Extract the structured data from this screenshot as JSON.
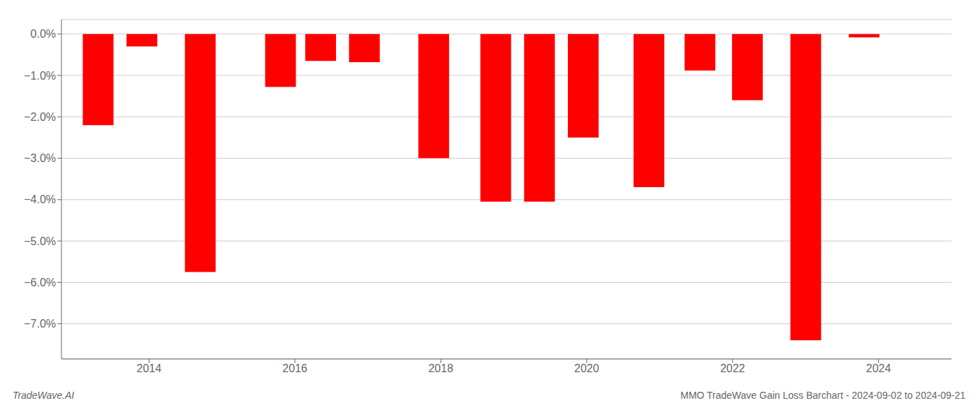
{
  "chart_data": {
    "type": "bar",
    "x": [
      2013.3,
      2013.9,
      2014.7,
      2015.8,
      2016.35,
      2016.95,
      2017.9,
      2018.75,
      2019.35,
      2019.95,
      2020.85,
      2021.55,
      2022.2,
      2023.0,
      2023.8
    ],
    "values": [
      -2.2,
      -0.3,
      -5.75,
      -1.28,
      -0.65,
      -0.68,
      -3.0,
      -4.05,
      -4.05,
      -2.5,
      -3.7,
      -0.88,
      -1.6,
      -7.4,
      -0.08
    ],
    "color": "#ff0000",
    "xlim": [
      2012.8,
      2025.0
    ],
    "xticks": [
      2014,
      2016,
      2018,
      2020,
      2022,
      2024
    ],
    "ylim": [
      -7.85,
      0.35
    ],
    "yticks": [
      {
        "value": 0.0,
        "label": "0.0%"
      },
      {
        "value": -1.0,
        "label": "−1.0%"
      },
      {
        "value": -2.0,
        "label": "−2.0%"
      },
      {
        "value": -3.0,
        "label": "−3.0%"
      },
      {
        "value": -4.0,
        "label": "−4.0%"
      },
      {
        "value": -5.0,
        "label": "−5.0%"
      },
      {
        "value": -6.0,
        "label": "−6.0%"
      },
      {
        "value": -7.0,
        "label": "−7.0%"
      }
    ],
    "grid": true,
    "annotations": [
      "TradeWave.AI",
      "MMO TradeWave Gain Loss Barchart - 2024-09-02 to 2024-09-21"
    ]
  }
}
